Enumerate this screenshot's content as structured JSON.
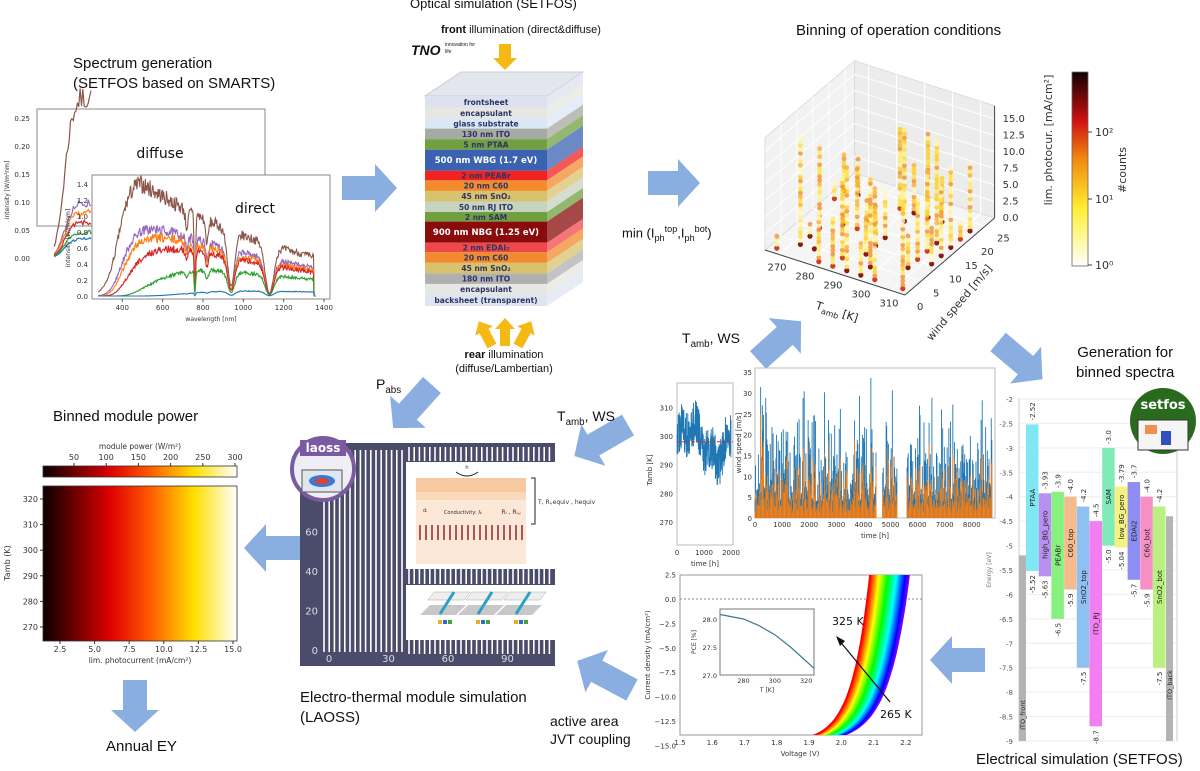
{
  "colors": {
    "arrow": "#8aaee0",
    "orange_arrow": "#f5b915",
    "laoss_bg": "#4b4b6b"
  },
  "spectrum": {
    "title_line1": "Spectrum generation",
    "title_line2": "(SETFOS based on SMARTS)",
    "diffuse_label": "diffuse",
    "direct_label": "direct",
    "ylabel": "intensity [W/m²nm]",
    "xlabel": "wavelength [nm]",
    "diffuse_yticks": [
      "0.00",
      "0.05",
      "0.10",
      "0.15",
      "0.20",
      "0.25"
    ],
    "direct_yticks": [
      "0.0",
      "0.2",
      "0.4",
      "0.6",
      "0.8",
      "1.0",
      "1.2",
      "1.4"
    ],
    "xticks": [
      "400",
      "600",
      "800",
      "1000",
      "1200",
      "1400"
    ],
    "series_colors": [
      "#8c564b",
      "#9467bd",
      "#ff7f0e",
      "#d62728",
      "#2ca02c",
      "#1f77b4"
    ]
  },
  "optical": {
    "title": "Optical simulation (SETFOS)",
    "front_bold": "front",
    "front_rest": " illumination (direct&diffuse)",
    "logo": "TNO",
    "logo_tagline": "innovation for life",
    "rear_bold": "rear",
    "rear_rest": " illumination",
    "rear_line2": "(diffuse/Lambertian)",
    "layers": [
      {
        "label": "frontsheet",
        "color": "#dde2ee"
      },
      {
        "label": "encapsulant",
        "color": "#e6e6e2"
      },
      {
        "label": "glass substrate",
        "color": "#dbe7f6"
      },
      {
        "label": "130 nm ITO",
        "color": "#a5aaa2"
      },
      {
        "label": "5 nm PTAA",
        "color": "#72a040"
      },
      {
        "label": "500 nm WBG (1.7 eV)",
        "color": "#3a62b0"
      },
      {
        "label": "2 nm PEABr",
        "color": "#f02222"
      },
      {
        "label": "20 nm C60",
        "color": "#f38a2e"
      },
      {
        "label": "45 nm SnO₂",
        "color": "#d9c26e"
      },
      {
        "label": "50 nm RJ ITO",
        "color": "#c6d3bf"
      },
      {
        "label": "2 nm SAM",
        "color": "#6f9f3f"
      },
      {
        "label": "900 nm NBG (1.25 eV)",
        "color": "#8a0b0b"
      },
      {
        "label": "2 nm EDAI₂",
        "color": "#f04848"
      },
      {
        "label": "20 nm C60",
        "color": "#f38a2e"
      },
      {
        "label": "45 nm SnO₂",
        "color": "#d9c26e"
      },
      {
        "label": "180 nm ITO",
        "color": "#b0b0b0"
      },
      {
        "label": "encapsulant",
        "color": "#e6e6e2"
      },
      {
        "label": "backsheet (transparent)",
        "color": "#dfe5f0"
      }
    ]
  },
  "binning": {
    "title": "Binning of operation conditions",
    "min_prefix": "min (I",
    "min_sub1": "ph",
    "min_sup1": "top",
    "min_mid": ",I",
    "min_sub2": "ph",
    "min_sup2": "bot",
    "min_suffix": ")",
    "zlabel": "lim. photocur. [mA/cm²]",
    "xlabel": "T",
    "xlabel_sub": "amb",
    "xlabel_unit": " [K]",
    "ylabel": "wind speed [m/s]",
    "xticks": [
      "270",
      "280",
      "290",
      "300",
      "310"
    ],
    "yticks": [
      "0",
      "5",
      "10",
      "15",
      "20",
      "25"
    ],
    "zticks": [
      "0.0",
      "2.5",
      "5.0",
      "7.5",
      "10.0",
      "12.5",
      "15.0"
    ],
    "colorbar_label": "#counts",
    "colorbar_ticks": [
      "10⁰",
      "10¹",
      "10²"
    ]
  },
  "tamb_ws_top": {
    "t": "T",
    "sub": "amb",
    "rest": ", WS"
  },
  "tamb_ws_mid": {
    "t": "T",
    "sub": "amb",
    "rest": ", WS"
  },
  "pabs": {
    "p": "P",
    "sub": "abs"
  },
  "weather": {
    "t_ylabel": "T",
    "t_ylabel_sub": "amb",
    "t_ylabel_unit": " [K]",
    "t_yticks": [
      "270",
      "280",
      "290",
      "300",
      "310"
    ],
    "t_xticks": [
      "0",
      "1000",
      "2000"
    ],
    "t_xlabel": "time [h]",
    "ws_ylabel": "wind speed [m/s]",
    "ws_yticks": [
      "0",
      "5",
      "10",
      "15",
      "20",
      "25",
      "30",
      "35"
    ],
    "ws_xticks": [
      "0",
      "1000",
      "2000",
      "3000",
      "4000",
      "5000",
      "6000",
      "7000",
      "8000"
    ],
    "ws_xlabel": "time [h]"
  },
  "generation": {
    "line1": "Generation for",
    "line2": "binned spectra",
    "logo": "setfos"
  },
  "electrical": {
    "title": "Electrical simulation (SETFOS)",
    "ylabel": "Energy [eV]",
    "yticks": [
      "-2",
      "-2.5",
      "-3",
      "-3.5",
      "-4",
      "-4.5",
      "-5",
      "-5.5",
      "-6",
      "-6.5",
      "-7",
      "-7.5",
      "-8",
      "-8.5",
      "-9"
    ],
    "contacts": [
      {
        "name": "ITO_front",
        "top": -5.2,
        "color": "#b4b4b4"
      },
      {
        "name": "ITO_back",
        "top": -4.4,
        "color": "#b4b4b4"
      }
    ],
    "layers": [
      {
        "name": "PTAA",
        "top": -2.52,
        "bottom": -5.52,
        "top_label": "-2.52",
        "bottom_label": "-5.52",
        "color": "#80e8f2"
      },
      {
        "name": "high_BG_pero",
        "top": -3.93,
        "bottom": -5.63,
        "top_label": "-3.93",
        "bottom_label": "-5.63",
        "color": "#b890f0"
      },
      {
        "name": "PEABr",
        "top": -3.9,
        "bottom": -6.5,
        "top_label": "-3.9",
        "bottom_label": "-6.5",
        "color": "#88f07e"
      },
      {
        "name": "C60_top",
        "top": -4.0,
        "bottom": -5.9,
        "top_label": "-4.0",
        "bottom_label": "-5.9",
        "color": "#f6bb8c"
      },
      {
        "name": "SnO2_top",
        "top": -4.2,
        "bottom": -7.5,
        "top_label": "-4.2",
        "bottom_label": "-7.5",
        "color": "#8ec0f2"
      },
      {
        "name": "ITO_RJ",
        "top": -4.5,
        "bottom": -8.7,
        "top_label": "-4.5",
        "bottom_label": "-8.7",
        "color": "#f27ef2"
      },
      {
        "name": "SAM",
        "top": -3.0,
        "bottom": -5.0,
        "top_label": "-3.0",
        "bottom_label": "-5.0",
        "color": "#80eab8"
      },
      {
        "name": "low_BG_pero",
        "top": -3.79,
        "bottom": -5.04,
        "top_label": "-3.79",
        "bottom_label": "-5.04",
        "color": "#f6f280"
      },
      {
        "name": "EDAI2",
        "top": -3.7,
        "bottom": -5.7,
        "top_label": "-3.7",
        "bottom_label": "-5.7",
        "color": "#8e8ef2"
      },
      {
        "name": "C60_bot",
        "top": -4.0,
        "bottom": -5.9,
        "top_label": "-4.0",
        "bottom_label": "-5.9",
        "color": "#f690c4"
      },
      {
        "name": "SnO2_bot",
        "top": -4.2,
        "bottom": -7.5,
        "top_label": "-4.2",
        "bottom_label": "-7.5",
        "color": "#baf080"
      }
    ]
  },
  "jv": {
    "ylabel": "Current density (mA/cm²)",
    "xlabel": "Voltage (V)",
    "yticks": [
      "2.5",
      "0.0",
      "−2.5",
      "−5.0",
      "−7.5",
      "−10.0",
      "−12.5",
      "−15.0"
    ],
    "xticks": [
      "1.5",
      "1.6",
      "1.7",
      "1.8",
      "1.9",
      "2.0",
      "2.1",
      "2.2"
    ],
    "label_hot": "325 K",
    "label_cold": "265 K",
    "jsc": -14.7,
    "t_range": [
      265,
      325
    ],
    "inset": {
      "ylabel": "PCE [%]",
      "xlabel": "T [K]",
      "yticks": [
        "27.0",
        "27.5",
        "28.0"
      ],
      "xticks": [
        "280",
        "300",
        "320"
      ],
      "t": [
        265,
        280,
        290,
        300,
        310,
        325
      ],
      "pce": [
        28.08,
        28.0,
        27.88,
        27.72,
        27.5,
        27.12
      ]
    }
  },
  "laoss": {
    "logo": "laoss",
    "xticks": [
      "0",
      "30",
      "60",
      "90"
    ],
    "yticks": [
      "0",
      "20",
      "40",
      "60"
    ],
    "inset_h": "h",
    "inset_d": "dᵢ",
    "inset_conductivity": "Conductivity: λᵢ",
    "inset_r": "Rᵢ , Rᵢ,ⱼ",
    "inset_equiv": "T, Rᵢ,equiv , hequiv",
    "title_line1": "Electro-thermal module simulation",
    "title_line2": "(LAOSS)"
  },
  "coupling": {
    "line1": "active area",
    "line2": "JVT coupling"
  },
  "power": {
    "title": "Binned module power",
    "colorbar_label": "module power (W/m²)",
    "colorbar_ticks": [
      "50",
      "100",
      "150",
      "200",
      "250",
      "300"
    ],
    "ylabel": "T",
    "ylabel_sub": "amb",
    "ylabel_unit": " (K)",
    "yticks": [
      "270",
      "280",
      "290",
      "300",
      "310",
      "320"
    ],
    "xticks": [
      "2.5",
      "5.0",
      "7.5",
      "10.0",
      "12.5",
      "15.0"
    ],
    "xlabel": "lim. photocurrent (mA/cm²)"
  },
  "annual": {
    "label": "Annual EY"
  }
}
